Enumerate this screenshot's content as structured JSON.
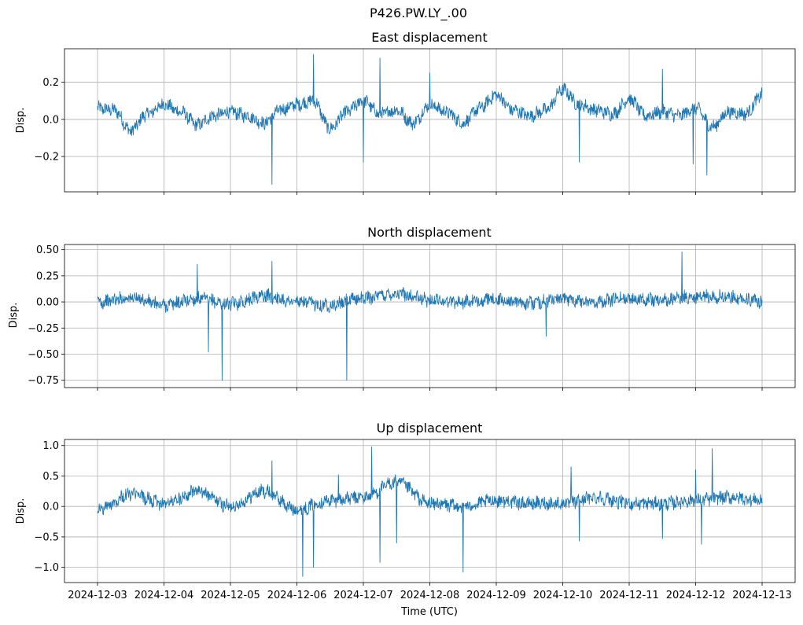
{
  "figure": {
    "title": "P426.PW.LY_.00",
    "xlabel": "Time (UTC)"
  },
  "chart_data": [
    {
      "type": "line",
      "title": "East displacement",
      "xlabel": "",
      "ylabel": "Disp.",
      "xlim": [
        "2024-12-03",
        "2024-12-13"
      ],
      "ylim": [
        -0.39,
        0.38
      ],
      "yticks": [
        0.2,
        0.0,
        -0.2
      ],
      "ytick_labels": [
        "0.2",
        "0.0",
        "−0.2"
      ],
      "grid": true,
      "series": [
        {
          "color": "#1f77b4",
          "x": [
            "2024-12-03T00:00",
            "2024-12-03T06:00",
            "2024-12-03T12:00",
            "2024-12-03T18:00",
            "2024-12-04T00:00",
            "2024-12-04T06:00",
            "2024-12-04T12:00",
            "2024-12-04T18:00",
            "2024-12-05T00:00",
            "2024-12-05T06:00",
            "2024-12-05T12:00",
            "2024-12-05T18:00",
            "2024-12-06T00:00",
            "2024-12-06T06:00",
            "2024-12-06T12:00",
            "2024-12-06T18:00",
            "2024-12-07T00:00",
            "2024-12-07T06:00",
            "2024-12-07T12:00",
            "2024-12-07T18:00",
            "2024-12-08T00:00",
            "2024-12-08T06:00",
            "2024-12-08T12:00",
            "2024-12-08T18:00",
            "2024-12-09T00:00",
            "2024-12-09T06:00",
            "2024-12-09T12:00",
            "2024-12-09T18:00",
            "2024-12-10T00:00",
            "2024-12-10T06:00",
            "2024-12-10T12:00",
            "2024-12-10T18:00",
            "2024-12-11T00:00",
            "2024-12-11T06:00",
            "2024-12-11T12:00",
            "2024-12-11T18:00",
            "2024-12-12T00:00",
            "2024-12-12T06:00",
            "2024-12-12T12:00",
            "2024-12-12T18:00",
            "2024-12-13T00:00"
          ],
          "values": [
            0.06,
            0.05,
            -0.06,
            0.03,
            0.08,
            0.04,
            -0.03,
            0.02,
            0.04,
            0.02,
            -0.02,
            0.05,
            0.08,
            0.1,
            -0.05,
            0.04,
            0.1,
            0.03,
            0.05,
            -0.02,
            0.08,
            0.04,
            -0.02,
            0.06,
            0.13,
            0.05,
            0.02,
            0.05,
            0.16,
            0.08,
            0.05,
            0.03,
            0.11,
            0.02,
            0.04,
            0.02,
            0.06,
            -0.04,
            0.04,
            0.03,
            0.13
          ],
          "spikes": [
            {
              "x": "2024-12-05T15:00",
              "y": -0.35
            },
            {
              "x": "2024-12-06T06:00",
              "y": 0.35
            },
            {
              "x": "2024-12-07T00:00",
              "y": -0.23
            },
            {
              "x": "2024-12-07T06:00",
              "y": 0.33
            },
            {
              "x": "2024-12-08T00:00",
              "y": 0.25
            },
            {
              "x": "2024-12-10T06:00",
              "y": -0.23
            },
            {
              "x": "2024-12-11T12:00",
              "y": 0.27
            },
            {
              "x": "2024-12-11T23:00",
              "y": -0.24
            },
            {
              "x": "2024-12-12T04:00",
              "y": -0.3
            }
          ]
        }
      ]
    },
    {
      "type": "line",
      "title": "North displacement",
      "xlabel": "",
      "ylabel": "Disp.",
      "xlim": [
        "2024-12-03",
        "2024-12-13"
      ],
      "ylim": [
        -0.82,
        0.55
      ],
      "yticks": [
        0.5,
        0.25,
        0.0,
        -0.25,
        -0.5,
        -0.75
      ],
      "ytick_labels": [
        "0.50",
        "0.25",
        "0.00",
        "−0.25",
        "−0.50",
        "−0.75"
      ],
      "grid": true,
      "series": [
        {
          "color": "#1f77b4",
          "x": [
            "2024-12-03T00:00",
            "2024-12-03T12:00",
            "2024-12-04T00:00",
            "2024-12-04T12:00",
            "2024-12-05T00:00",
            "2024-12-05T12:00",
            "2024-12-06T00:00",
            "2024-12-06T12:00",
            "2024-12-07T00:00",
            "2024-12-07T12:00",
            "2024-12-08T00:00",
            "2024-12-08T12:00",
            "2024-12-09T00:00",
            "2024-12-09T12:00",
            "2024-12-10T00:00",
            "2024-12-10T12:00",
            "2024-12-11T00:00",
            "2024-12-11T12:00",
            "2024-12-12T00:00",
            "2024-12-12T12:00",
            "2024-12-13T00:00"
          ],
          "values": [
            0.0,
            0.04,
            -0.03,
            0.03,
            -0.02,
            0.06,
            0.0,
            -0.03,
            0.04,
            0.08,
            0.02,
            0.0,
            0.02,
            -0.01,
            0.03,
            0.0,
            0.04,
            0.02,
            0.05,
            0.05,
            0.0
          ],
          "spikes": [
            {
              "x": "2024-12-04T12:00",
              "y": 0.36
            },
            {
              "x": "2024-12-04T16:00",
              "y": -0.48
            },
            {
              "x": "2024-12-04T21:00",
              "y": -0.75
            },
            {
              "x": "2024-12-05T15:00",
              "y": 0.39
            },
            {
              "x": "2024-12-06T18:00",
              "y": -0.75
            },
            {
              "x": "2024-12-09T18:00",
              "y": -0.33
            },
            {
              "x": "2024-12-11T19:00",
              "y": 0.48
            }
          ]
        }
      ]
    },
    {
      "type": "line",
      "title": "Up displacement",
      "xlabel": "Time (UTC)",
      "ylabel": "Disp.",
      "xlim": [
        "2024-12-03",
        "2024-12-13"
      ],
      "ylim": [
        -1.25,
        1.1
      ],
      "yticks": [
        1.0,
        0.5,
        0.0,
        -0.5,
        -1.0
      ],
      "ytick_labels": [
        "1.0",
        "0.5",
        "0.0",
        "−0.5",
        "−1.0"
      ],
      "xticks": [
        "2024-12-03",
        "2024-12-04",
        "2024-12-05",
        "2024-12-06",
        "2024-12-07",
        "2024-12-08",
        "2024-12-09",
        "2024-12-10",
        "2024-12-11",
        "2024-12-12",
        "2024-12-13"
      ],
      "grid": true,
      "series": [
        {
          "color": "#1f77b4",
          "x": [
            "2024-12-03T00:00",
            "2024-12-03T12:00",
            "2024-12-04T00:00",
            "2024-12-04T12:00",
            "2024-12-05T00:00",
            "2024-12-05T12:00",
            "2024-12-06T00:00",
            "2024-12-06T12:00",
            "2024-12-07T00:00",
            "2024-12-07T12:00",
            "2024-12-08T00:00",
            "2024-12-08T12:00",
            "2024-12-09T00:00",
            "2024-12-09T12:00",
            "2024-12-10T00:00",
            "2024-12-10T12:00",
            "2024-12-11T00:00",
            "2024-12-11T12:00",
            "2024-12-12T00:00",
            "2024-12-12T12:00",
            "2024-12-13T00:00"
          ],
          "values": [
            -0.05,
            0.2,
            0.05,
            0.25,
            0.0,
            0.25,
            -0.05,
            0.1,
            0.15,
            0.4,
            0.05,
            0.0,
            0.1,
            0.05,
            0.05,
            0.15,
            0.05,
            0.05,
            0.1,
            0.15,
            0.1
          ],
          "spikes": [
            {
              "x": "2024-12-05T15:00",
              "y": 0.75
            },
            {
              "x": "2024-12-06T02:00",
              "y": -1.15
            },
            {
              "x": "2024-12-06T06:00",
              "y": -1.0
            },
            {
              "x": "2024-12-06T15:00",
              "y": 0.52
            },
            {
              "x": "2024-12-07T03:00",
              "y": 0.98
            },
            {
              "x": "2024-12-07T06:00",
              "y": -0.92
            },
            {
              "x": "2024-12-07T12:00",
              "y": -0.6
            },
            {
              "x": "2024-12-08T12:00",
              "y": -1.08
            },
            {
              "x": "2024-12-10T03:00",
              "y": 0.65
            },
            {
              "x": "2024-12-10T06:00",
              "y": -0.57
            },
            {
              "x": "2024-12-11T12:00",
              "y": -0.53
            },
            {
              "x": "2024-12-12T00:00",
              "y": 0.6
            },
            {
              "x": "2024-12-12T02:00",
              "y": -0.62
            },
            {
              "x": "2024-12-12T06:00",
              "y": 0.95
            }
          ]
        }
      ]
    }
  ]
}
